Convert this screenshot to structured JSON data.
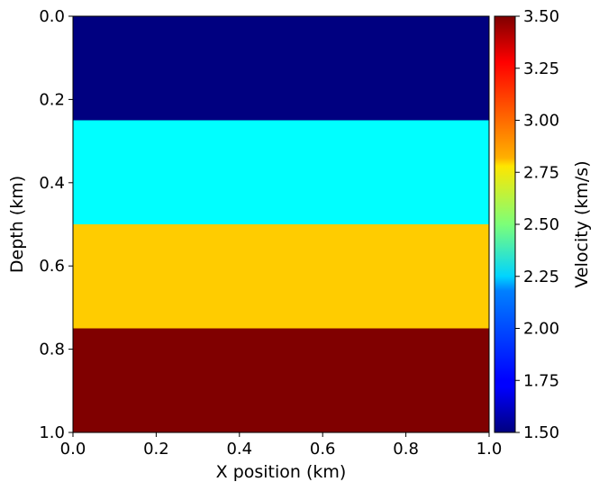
{
  "chart_data": {
    "type": "heatmap",
    "title": "",
    "xlabel": "X position (km)",
    "ylabel": "Depth (km)",
    "xlim": [
      0.0,
      1.0
    ],
    "ylim": [
      0.0,
      1.0
    ],
    "y_inverted": true,
    "xticks": [
      "0.0",
      "0.2",
      "0.4",
      "0.6",
      "0.8",
      "1.0"
    ],
    "yticks": [
      "0.0",
      "0.2",
      "0.4",
      "0.6",
      "0.8",
      "1.0"
    ],
    "layers": [
      {
        "depth_top": 0.0,
        "depth_bottom": 0.25,
        "velocity": 1.5
      },
      {
        "depth_top": 0.25,
        "depth_bottom": 0.5,
        "velocity": 2.25
      },
      {
        "depth_top": 0.5,
        "depth_bottom": 0.75,
        "velocity": 2.85
      },
      {
        "depth_top": 0.75,
        "depth_bottom": 1.0,
        "velocity": 3.5
      }
    ],
    "colorbar": {
      "label": "Velocity (km/s)",
      "colormap": "jet",
      "range": [
        1.5,
        3.5
      ],
      "ticks": [
        "1.50",
        "1.75",
        "2.00",
        "2.25",
        "2.50",
        "2.75",
        "3.00",
        "3.25",
        "3.50"
      ]
    },
    "grid": false
  }
}
